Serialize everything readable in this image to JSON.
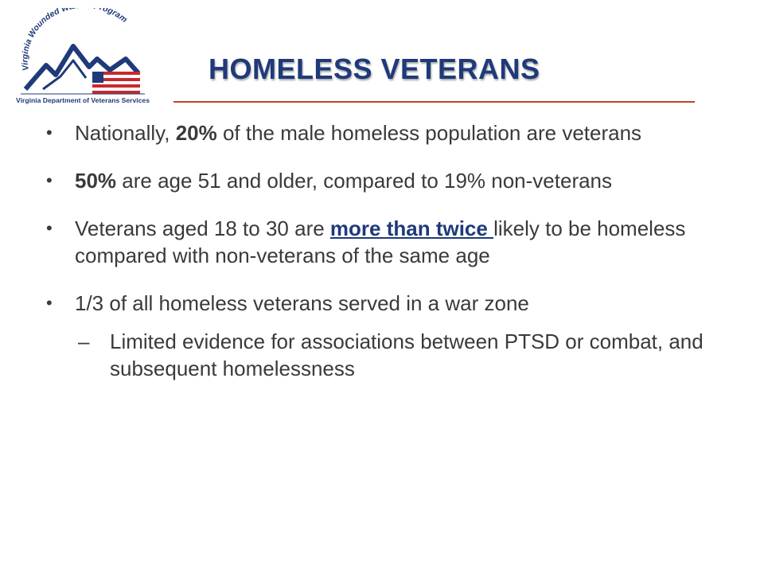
{
  "logo": {
    "arc_text": "Virginia Wounded Warrior Program",
    "bottom_text": "Virginia Department of Veterans Services",
    "colors": {
      "navy": "#1f3a7a",
      "red": "#c8282d"
    }
  },
  "title": "HOMELESS VETERANS",
  "bullets": [
    {
      "pre": "Nationally, ",
      "bold": "20%",
      "post": " of the male homeless population are veterans"
    },
    {
      "bold": "50%",
      "post": " are age 51 and older, compared to 19% non-veterans"
    },
    {
      "pre": "Veterans aged 18 to 30 are ",
      "underlined": "more than twice ",
      "post": "likely to be homeless compared with non-veterans of the same age"
    },
    {
      "text": "1/3 of all homeless veterans served in a war zone",
      "sub": "Limited evidence for associations between PTSD or combat, and subsequent homelessness"
    }
  ],
  "colors": {
    "title": "#1f3a7a",
    "rule": "#c8412b",
    "body_text": "#3a3a3a"
  }
}
